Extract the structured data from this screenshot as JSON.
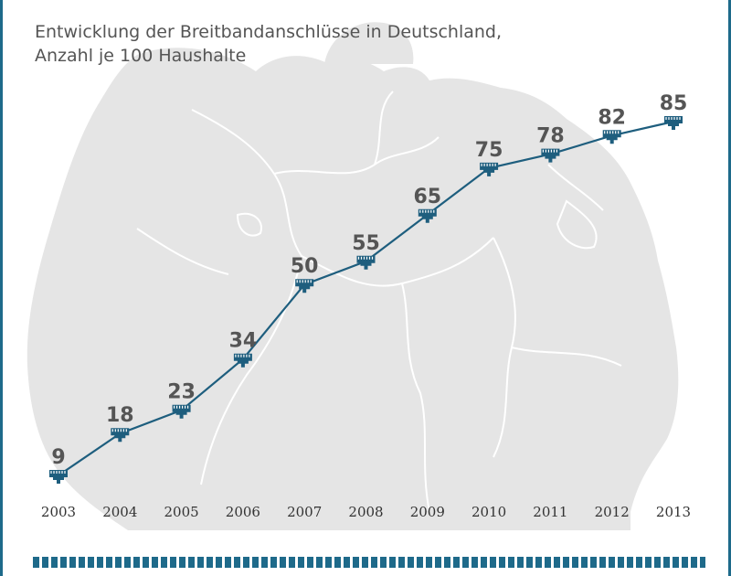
{
  "chart_data": {
    "type": "line",
    "title_lines": [
      "Entwicklung der Breitbandanschlüsse in Deutschland,",
      "Anzahl je 100 Haushalte"
    ],
    "x": [
      "2003",
      "2004",
      "2005",
      "2006",
      "2007",
      "2008",
      "2009",
      "2010",
      "2011",
      "2012",
      "2013"
    ],
    "values": [
      9,
      18,
      23,
      34,
      50,
      55,
      65,
      75,
      78,
      82,
      85
    ],
    "data_labels": [
      "9",
      "18",
      "23",
      "34",
      "50",
      "55",
      "65",
      "75",
      "78",
      "82",
      "85"
    ],
    "xlabel": "",
    "ylabel": "",
    "ylim": [
      9,
      85
    ],
    "grid": false,
    "legend": "none",
    "marker": "network-plug",
    "background": "map-of-germany"
  },
  "colors": {
    "line": "#1e5e7e",
    "marker": "#1e5e7e",
    "label": "#555555",
    "map_fill": "#e5e5e5",
    "map_border": "#ffffff",
    "accent": "#1e6a8a"
  }
}
